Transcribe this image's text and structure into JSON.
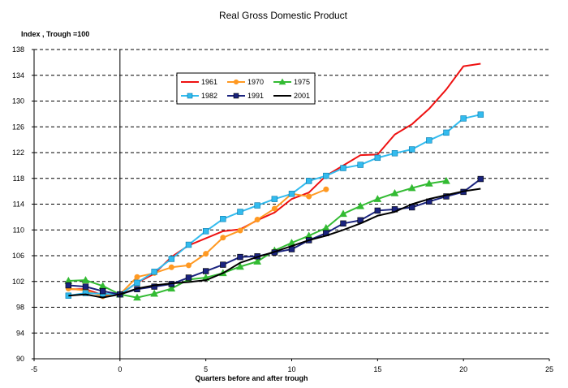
{
  "chart_data": {
    "type": "line",
    "title": "Real Gross Domestic Product",
    "ylabel": "Index , Trough =100",
    "xlabel": "Quarters before and after trough",
    "xlim": [
      -5,
      25
    ],
    "ylim": [
      90,
      138
    ],
    "xticks": [
      -5,
      0,
      5,
      10,
      15,
      20,
      25
    ],
    "yticks": [
      90,
      94,
      98,
      102,
      106,
      110,
      114,
      118,
      122,
      126,
      130,
      134,
      138
    ],
    "grid": "horizontal-dashed",
    "legend_position": "top-left",
    "series": [
      {
        "name": "1961",
        "color": "#ee1111",
        "marker": "none",
        "x": [
          -3,
          -2,
          -1,
          0,
          1,
          2,
          3,
          4,
          5,
          6,
          7,
          8,
          9,
          10,
          11,
          12,
          13,
          14,
          15,
          16,
          17,
          18,
          19,
          20,
          21
        ],
        "values": [
          100.8,
          100.8,
          99.9,
          100.0,
          101.8,
          103.2,
          105.8,
          107.6,
          108.7,
          109.8,
          110.1,
          111.5,
          112.7,
          114.8,
          115.8,
          118.4,
          120.0,
          121.6,
          121.7,
          124.8,
          126.4,
          128.8,
          131.8,
          135.4,
          135.8
        ]
      },
      {
        "name": "1970",
        "color": "#ff9922",
        "marker": "circle",
        "x": [
          -3,
          -2,
          -1,
          0,
          1,
          2,
          3,
          4,
          5,
          6,
          7,
          8,
          9,
          10,
          11,
          12
        ],
        "values": [
          100.9,
          100.6,
          99.7,
          100.0,
          102.7,
          103.3,
          104.2,
          104.5,
          106.3,
          108.8,
          109.9,
          111.6,
          113.3,
          115.6,
          115.2,
          116.3
        ]
      },
      {
        "name": "1975",
        "color": "#33bb33",
        "marker": "triangle",
        "x": [
          -3,
          -2,
          -1,
          0,
          1,
          2,
          3,
          4,
          5,
          6,
          7,
          8,
          9,
          10,
          11,
          12,
          13,
          14,
          15,
          16,
          17,
          18,
          19
        ],
        "values": [
          102.1,
          102.2,
          101.3,
          100.0,
          99.5,
          100.1,
          100.9,
          102.3,
          102.6,
          103.3,
          104.3,
          105.1,
          106.8,
          108.0,
          109.1,
          110.3,
          112.5,
          113.7,
          114.8,
          115.7,
          116.5,
          117.2,
          117.6
        ]
      },
      {
        "name": "1982",
        "color": "#33bbee",
        "marker": "square",
        "x": [
          -3,
          -2,
          -1,
          0,
          1,
          2,
          3,
          4,
          5,
          6,
          7,
          8,
          9,
          10,
          11,
          12,
          13,
          14,
          15,
          16,
          17,
          18,
          19,
          20,
          21
        ],
        "values": [
          99.8,
          100.2,
          100.1,
          100.0,
          101.8,
          103.5,
          105.5,
          107.7,
          109.8,
          111.7,
          112.8,
          113.8,
          114.8,
          115.6,
          117.6,
          118.4,
          119.6,
          120.1,
          121.2,
          121.9,
          122.5,
          123.9,
          125.1,
          127.3,
          127.9
        ]
      },
      {
        "name": "1991",
        "color": "#1a237e",
        "marker": "square",
        "x": [
          -3,
          -2,
          -1,
          0,
          1,
          2,
          3,
          4,
          5,
          6,
          7,
          8,
          9,
          10,
          11,
          12,
          13,
          14,
          15,
          16,
          17,
          18,
          19,
          20,
          21
        ],
        "values": [
          101.4,
          101.2,
          100.5,
          100.0,
          100.8,
          101.2,
          101.6,
          102.6,
          103.6,
          104.6,
          105.8,
          105.9,
          106.5,
          107.0,
          108.4,
          109.5,
          111.0,
          111.5,
          113.0,
          113.2,
          113.5,
          114.4,
          115.2,
          115.9,
          117.9
        ]
      },
      {
        "name": "2001",
        "color": "#000000",
        "marker": "none",
        "x": [
          -3,
          -2,
          -1,
          0,
          1,
          2,
          3,
          4,
          5,
          6,
          7,
          8,
          9,
          10,
          11,
          12,
          13,
          14,
          15,
          16,
          17,
          18,
          19,
          20,
          21
        ],
        "values": [
          99.8,
          100.0,
          99.5,
          100.0,
          100.9,
          101.4,
          101.7,
          101.9,
          102.2,
          103.3,
          104.9,
          105.8,
          106.6,
          107.5,
          108.4,
          109.1,
          110.0,
          111.0,
          112.2,
          112.8,
          114.0,
          114.8,
          115.4,
          116.0,
          116.4
        ]
      }
    ]
  }
}
